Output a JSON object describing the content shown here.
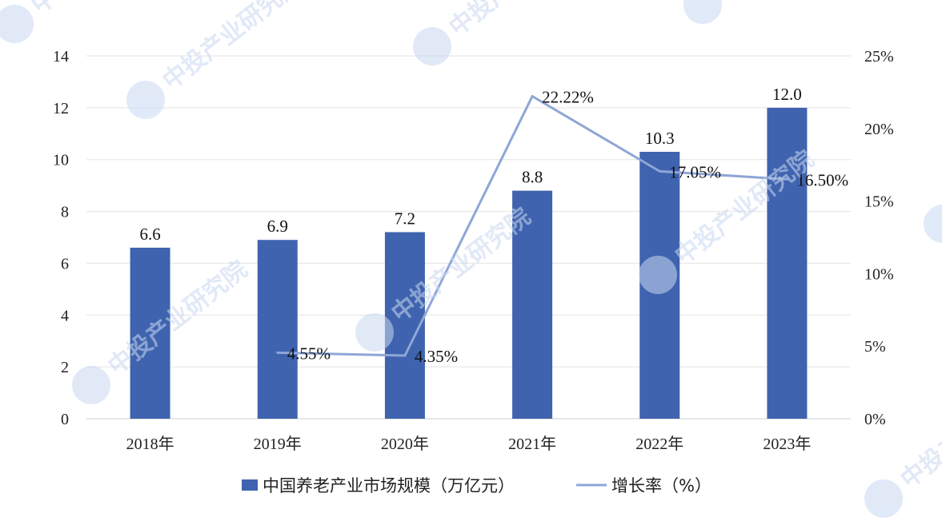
{
  "chart_data": {
    "type": "bar+line",
    "categories": [
      "2018年",
      "2019年",
      "2020年",
      "2021年",
      "2022年",
      "2023年"
    ],
    "series": [
      {
        "name": "中国养老产业市场规模（万亿元）",
        "type": "bar",
        "axis": "left",
        "color": "#3f63ae",
        "values": [
          6.6,
          6.9,
          7.2,
          8.8,
          10.3,
          12.0
        ],
        "labels": [
          "6.6",
          "6.9",
          "7.2",
          "8.8",
          "10.3",
          "12.0"
        ]
      },
      {
        "name": "增长率（%）",
        "type": "line",
        "axis": "right",
        "color": "#8fa6d6",
        "values": [
          null,
          4.55,
          4.35,
          22.22,
          17.05,
          16.5
        ],
        "labels": [
          "",
          "4.55%",
          "4.35%",
          "22.22%",
          "17.05%",
          "16.50%"
        ]
      }
    ],
    "y_left": {
      "min": 0,
      "max": 14,
      "ticks": [
        "0",
        "2",
        "4",
        "6",
        "8",
        "10",
        "12",
        "14"
      ]
    },
    "y_right": {
      "min": 0,
      "max": 25,
      "ticks": [
        "0%",
        "5%",
        "10%",
        "15%",
        "20%",
        "25%"
      ]
    },
    "grid": true,
    "legend_position": "bottom"
  },
  "watermark": {
    "text": "中投产业研究院",
    "color": "#c9d8f2",
    "icon": "company-logo-icon"
  }
}
